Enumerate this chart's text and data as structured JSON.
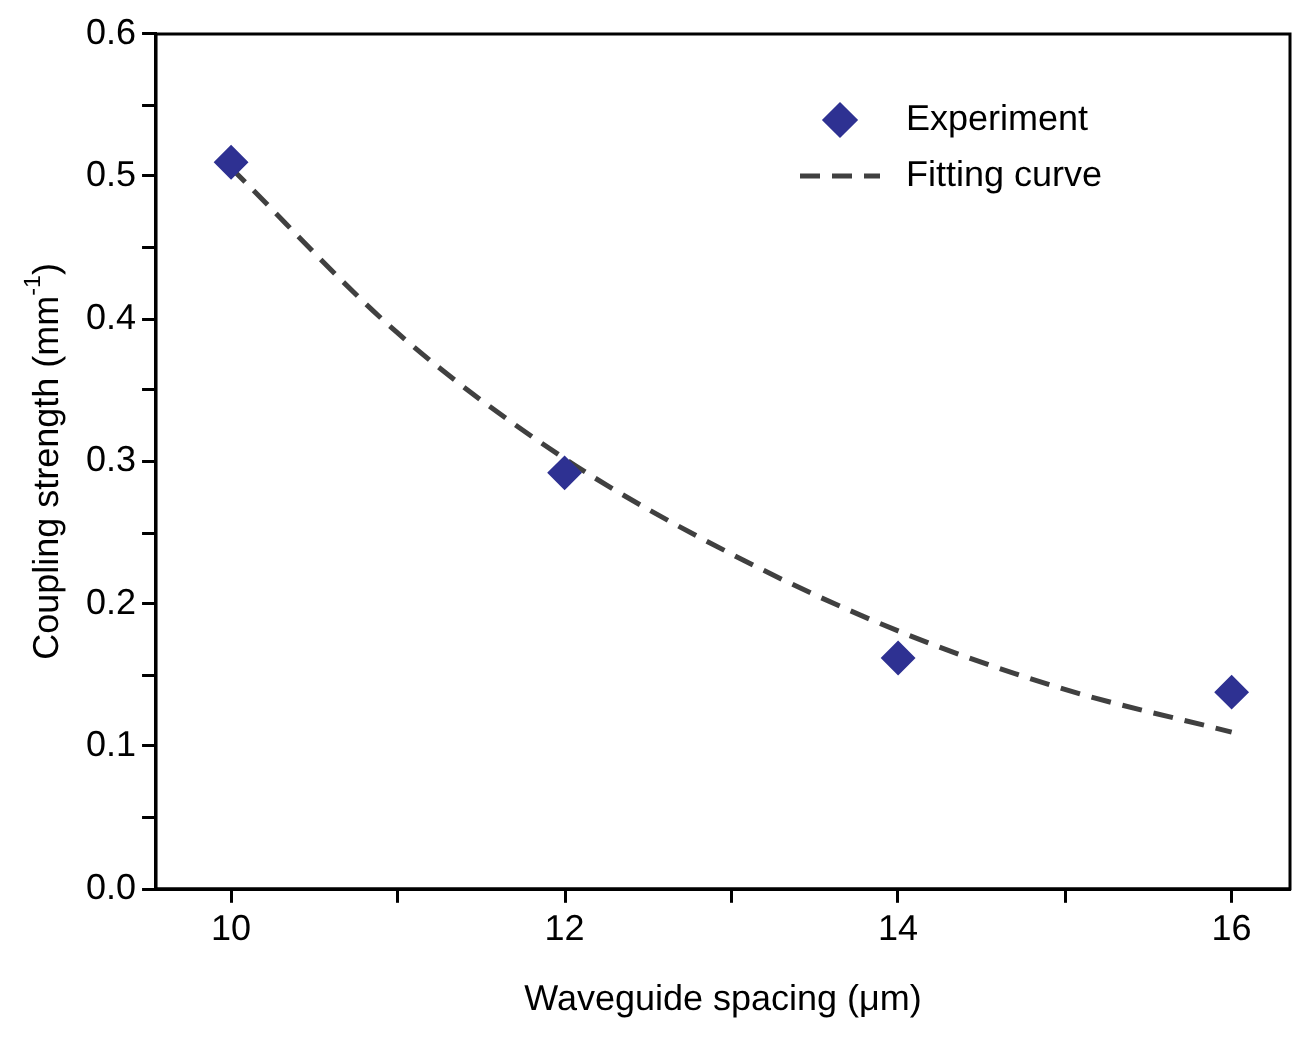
{
  "chart_data": {
    "type": "scatter",
    "xlabel": "Waveguide spacing (μm)",
    "ylabel": "Coupling strength (mm$^{-1}$)",
    "xlim": [
      9.55,
      16.35
    ],
    "xticks": [
      10,
      {
        "value": 11,
        "label": null
      },
      12,
      {
        "value": 13,
        "label": null
      },
      14,
      {
        "value": 15,
        "label": null
      },
      16
    ],
    "ylim": [
      0,
      0.6
    ],
    "yticks": [
      "0.0",
      {
        "value": 0.05,
        "label": null
      },
      0.1,
      {
        "value": 0.15,
        "label": null
      },
      0.2,
      {
        "value": 0.25,
        "label": null
      },
      0.3,
      {
        "value": 0.35,
        "label": null
      },
      0.4,
      {
        "value": 0.45,
        "label": null
      },
      0.5,
      {
        "value": 0.55,
        "label": null
      },
      0.6
    ],
    "grid": false,
    "legend": "top right",
    "series": [
      {
        "name": "Experiment",
        "marker": "diamond",
        "color": "#2e3192",
        "x": [
          10,
          12,
          14,
          16
        ],
        "values": [
          0.51,
          0.292,
          0.162,
          0.138
        ]
      },
      {
        "name": "Fitting curve",
        "type": "line",
        "marker": "none",
        "line_style": "dashed",
        "color": "#404040",
        "x": [
          10,
          11,
          12,
          13,
          14,
          15,
          16
        ],
        "values": [
          0.506,
          0.39,
          0.302,
          0.235,
          0.181,
          0.14,
          0.11
        ]
      }
    ]
  }
}
